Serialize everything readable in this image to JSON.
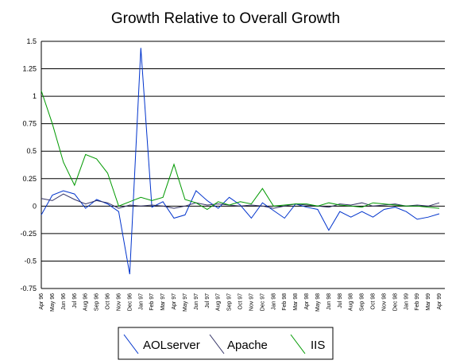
{
  "chart_data": {
    "type": "line",
    "title": "Growth Relative to Overall Growth",
    "xlabel": "",
    "ylabel": "",
    "ylim": [
      -0.75,
      1.5
    ],
    "yticks": [
      1.5,
      1.25,
      1,
      0.75,
      0.5,
      0.25,
      0,
      -0.25,
      -0.5,
      -0.75
    ],
    "grid": true,
    "legend": "bottom",
    "categories": [
      "Apr 96",
      "May 96",
      "Jun 96",
      "Jul 96",
      "Aug 96",
      "Sep 96",
      "Oct 96",
      "Nov 96",
      "Dec 96",
      "Jan 97",
      "Feb 97",
      "Mar 97",
      "Apr 97",
      "May 97",
      "Jun 97",
      "Jul 97",
      "Aug 97",
      "Sep 97",
      "Oct 97",
      "Nov 97",
      "Dec 97",
      "Jan 98",
      "Feb 98",
      "Mar 98",
      "Apr 98",
      "May 98",
      "Jun 98",
      "Jul 98",
      "Aug 98",
      "Sep 98",
      "Oct 98",
      "Nov 98",
      "Dec 98",
      "Jan 99",
      "Feb 99",
      "Mar 99",
      "Apr 99"
    ],
    "series": [
      {
        "name": "AOLserver",
        "color": "#0033cc",
        "values": [
          -0.08,
          0.1,
          0.14,
          0.11,
          -0.02,
          0.06,
          0.02,
          -0.05,
          -0.62,
          1.44,
          -0.01,
          0.04,
          -0.11,
          -0.08,
          0.14,
          0.05,
          -0.02,
          0.08,
          0.01,
          -0.11,
          0.03,
          -0.04,
          -0.11,
          0.02,
          -0.01,
          -0.03,
          -0.22,
          -0.05,
          -0.1,
          -0.05,
          -0.1,
          -0.03,
          -0.01,
          -0.05,
          -0.12,
          -0.1,
          -0.07
        ]
      },
      {
        "name": "Apache",
        "color": "#333366",
        "values": [
          0.07,
          0.05,
          0.11,
          0.06,
          0.02,
          0.05,
          0.03,
          -0.02,
          0.01,
          0.0,
          0.01,
          0.0,
          -0.02,
          0.0,
          0.03,
          0.01,
          0.02,
          0.01,
          0.0,
          0.01,
          0.0,
          -0.02,
          0.0,
          0.02,
          0.01,
          0.0,
          -0.01,
          0.02,
          0.01,
          0.03,
          0.0,
          0.01,
          0.02,
          0.0,
          0.01,
          0.0,
          0.03
        ]
      },
      {
        "name": "IIS",
        "color": "#009900",
        "values": [
          1.05,
          0.75,
          0.4,
          0.19,
          0.47,
          0.43,
          0.3,
          0.0,
          0.04,
          0.08,
          0.05,
          0.08,
          0.38,
          0.06,
          0.03,
          -0.03,
          0.04,
          0.01,
          0.04,
          0.02,
          0.16,
          0.0,
          0.01,
          0.02,
          0.02,
          0.0,
          0.03,
          0.01,
          0.0,
          -0.01,
          0.03,
          0.02,
          0.01,
          0.0,
          0.0,
          -0.01,
          -0.02
        ]
      }
    ]
  }
}
